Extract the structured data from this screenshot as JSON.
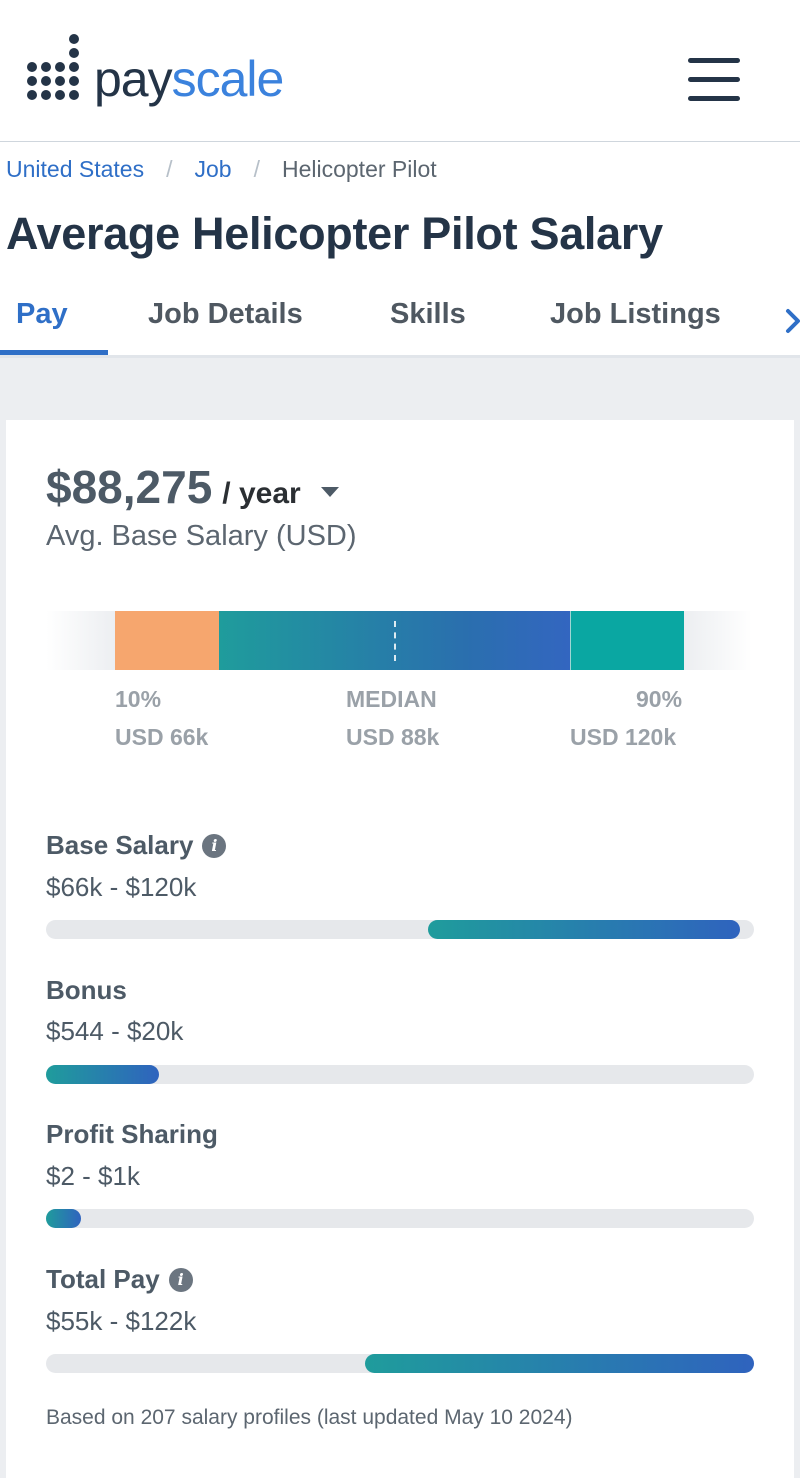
{
  "header": {
    "logo_part1": "pay",
    "logo_part2": "scale",
    "logo_icon": "payscale-dots-logo",
    "menu_icon": "hamburger-menu-icon"
  },
  "breadcrumb": {
    "items": [
      "United States",
      "Job",
      "Helicopter Pilot"
    ],
    "separator": "/"
  },
  "page_title": "Average Helicopter Pilot Salary",
  "tabs": [
    {
      "label": "Pay",
      "active": true
    },
    {
      "label": "Job Details",
      "active": false
    },
    {
      "label": "Skills",
      "active": false
    },
    {
      "label": "Job Listings",
      "active": false
    }
  ],
  "tabs_next_icon": "chevron-right-icon",
  "salary": {
    "amount": "$88,275",
    "per": "/ year",
    "subtitle": "Avg. Base Salary (USD)"
  },
  "range": {
    "p10_label": "10%",
    "p10_value": "USD 66k",
    "median_label": "MEDIAN",
    "median_value": "USD 88k",
    "p90_label": "90%",
    "p90_value": "USD 120k"
  },
  "pay_items": [
    {
      "title": "Base Salary",
      "range": "$66k - $120k",
      "info": true,
      "fill_start": 0.54,
      "fill_end": 0.98
    },
    {
      "title": "Bonus",
      "range": "$544 - $20k",
      "info": false,
      "fill_start": 0.0,
      "fill_end": 0.16
    },
    {
      "title": "Profit Sharing",
      "range": "$2 - $1k",
      "info": false,
      "fill_start": 0.0,
      "fill_end": 0.05
    },
    {
      "title": "Total Pay",
      "range": "$55k - $122k",
      "info": true,
      "fill_start": 0.45,
      "fill_end": 1.0
    }
  ],
  "info_icon": "info-icon",
  "footnote": "Based on 207 salary profiles (last updated May 10 2024)",
  "colors": {
    "brand_blue": "#2f6fc7",
    "navy": "#243447",
    "orange": "#f6a66e",
    "teal": "#0aa7a2"
  }
}
